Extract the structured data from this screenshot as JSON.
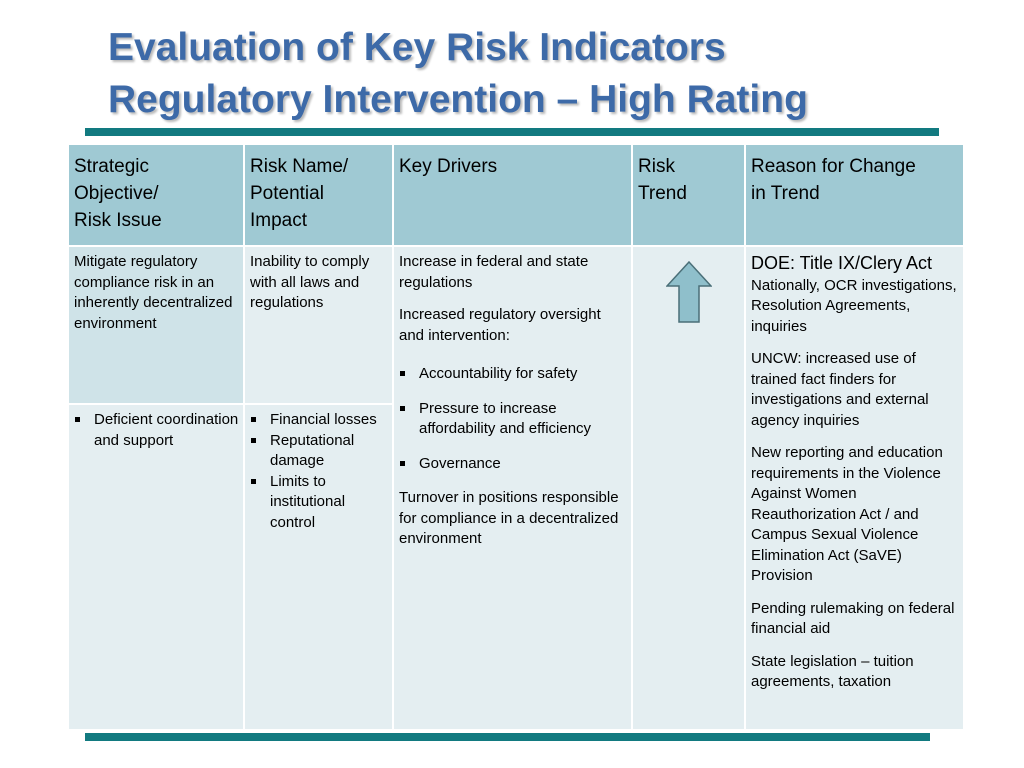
{
  "slide": {
    "title_line1": "Evaluation of Key Risk Indicators",
    "title_line2": "Regulatory Intervention – High Rating"
  },
  "table": {
    "headers": [
      {
        "lines": [
          "Strategic",
          "Objective/",
          "Risk Issue"
        ]
      },
      {
        "lines": [
          "Risk Name/",
          "Potential",
          "Impact"
        ]
      },
      {
        "lines": [
          "Key Drivers"
        ]
      },
      {
        "lines": [
          "Risk",
          "Trend"
        ]
      },
      {
        "lines": [
          "Reason for Change",
          "in Trend"
        ]
      }
    ],
    "strategic_objective": "Mitigate regulatory compliance risk in an inherently decentralized environment",
    "risk_name": "Inability to comply with all laws and regulations",
    "risk_issues": [
      "Deficient coordination and support"
    ],
    "potential_impacts": [
      "Financial losses",
      "Reputational damage",
      "Limits to institutional control"
    ],
    "key_drivers": {
      "intro1": "Increase in federal and state regulations",
      "intro2": "Increased regulatory oversight and intervention:",
      "bullets": [
        "Accountability for safety",
        "Pressure to increase affordability and efficiency",
        "Governance"
      ],
      "closing": "Turnover in positions responsible for compliance in a decentralized environment"
    },
    "risk_trend": {
      "direction": "up",
      "icon": "up-arrow-icon",
      "fill": "#8fbfcb",
      "stroke": "#4a6f78"
    },
    "reasons": {
      "doe_heading": "DOE: Title IX/Clery Act",
      "doe_detail": "Nationally, OCR investigations, Resolution Agreements, inquiries",
      "uncw": "UNCW: increased use of trained fact finders for investigations and external agency inquiries",
      "vawa": "New reporting and education requirements in the Violence Against Women Reauthorization Act / and Campus Sexual Violence Elimination Act (SaVE) Provision",
      "rulemaking": "Pending rulemaking on federal financial aid",
      "state": "State legislation – tuition agreements, taxation"
    }
  },
  "colors": {
    "title": "#3d6aa8",
    "rule": "#127a80",
    "header_bg": "#9fc9d3",
    "objective_bg": "#cfe3e8",
    "body_bg": "#e4eef1"
  }
}
